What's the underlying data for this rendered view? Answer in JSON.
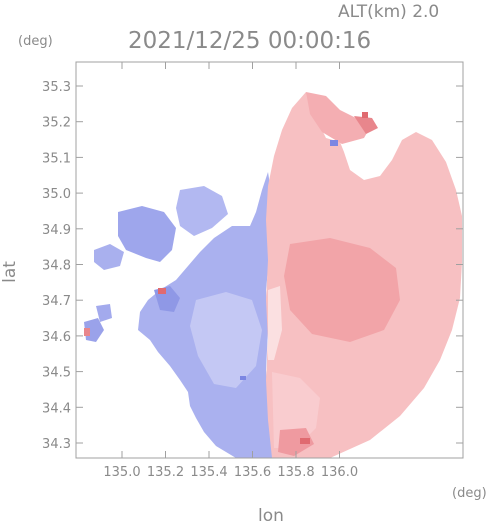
{
  "header": {
    "altitude_label": "ALT(km) 2.0",
    "timestamp": "2021/12/25 00:00:16"
  },
  "axes": {
    "y_unit": "(deg)",
    "x_unit": "(deg)",
    "ylabel": "lat",
    "xlabel": "lon",
    "x_ticks": [
      "135.0",
      "135.2",
      "135.4",
      "135.6",
      "135.8",
      "136.0"
    ],
    "y_ticks": [
      "35.3",
      "35.2",
      "35.1",
      "35.0",
      "34.9",
      "34.8",
      "34.7",
      "34.6",
      "34.5",
      "34.4",
      "34.3"
    ]
  },
  "colors": {
    "approaching": "#a8aff0",
    "receding": "#f6b8bb",
    "frame": "#a0a0a0"
  }
}
